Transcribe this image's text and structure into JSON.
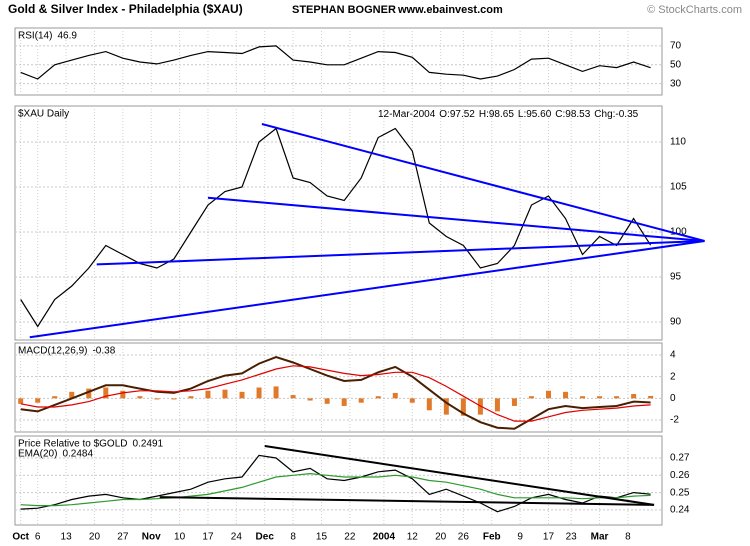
{
  "header": {
    "title": "Gold & Silver Index - Philadelphia ($XAU)",
    "author": "STEPHAN BOGNER",
    "website": "www.ebainvest.com",
    "copyright": "© StockCharts.com"
  },
  "chart_data": [
    {
      "type": "line",
      "x": [
        0,
        3,
        6,
        9,
        12,
        15,
        18,
        21,
        24,
        27,
        30,
        33,
        36,
        39,
        42,
        45,
        48,
        51,
        54,
        57,
        60,
        63,
        66,
        69,
        72,
        75,
        78,
        81,
        84,
        87,
        90,
        93,
        96,
        99,
        102,
        105,
        108,
        111
      ],
      "ylim": [
        18,
        89
      ],
      "yticks": [
        30,
        50,
        70
      ],
      "grid": true,
      "series": [
        {
          "name": "RSI(14)",
          "color": "#000000",
          "values": [
            42,
            35,
            50,
            55,
            60,
            64,
            57,
            53,
            51,
            55,
            60,
            64,
            63,
            62,
            69,
            70,
            55,
            53,
            50,
            50,
            57,
            64,
            63,
            58,
            42,
            40,
            39,
            35,
            38,
            45,
            56,
            57,
            50,
            43,
            49,
            47,
            53,
            46.9
          ]
        }
      ]
    },
    {
      "type": "line",
      "title": "$XAU Daily",
      "x": [
        0,
        3,
        6,
        9,
        12,
        15,
        18,
        21,
        24,
        27,
        30,
        33,
        36,
        39,
        42,
        45,
        48,
        51,
        54,
        57,
        60,
        63,
        66,
        69,
        72,
        75,
        78,
        81,
        84,
        87,
        90,
        93,
        96,
        99,
        102,
        105,
        108,
        111
      ],
      "quote": {
        "date": "12-Mar-2004",
        "open": "O:97.52",
        "high": "H:98.65",
        "low": "L:95.60",
        "close": "C:98.53",
        "change": "Chg:-0.35"
      },
      "ylim": [
        88,
        114
      ],
      "yticks": [
        90,
        95,
        100,
        105,
        110
      ],
      "grid": true,
      "series": [
        {
          "color": "#000000",
          "values": [
            92.5,
            89.5,
            92.5,
            94,
            96,
            98.5,
            97.5,
            96.5,
            96,
            97,
            100,
            103,
            104.5,
            105,
            110,
            111.5,
            106,
            105.5,
            104,
            103.5,
            106,
            110.5,
            111.5,
            109,
            101,
            99.5,
            98.5,
            96,
            96.5,
            98.5,
            103,
            104,
            101.5,
            97.5,
            99.5,
            98.5,
            101.5,
            98.53
          ]
        }
      ],
      "trendlines": [
        {
          "x": [
            42.5,
            120.5
          ],
          "y": [
            112,
            99
          ],
          "color": "#0000ff"
        },
        {
          "x": [
            33,
            120.5
          ],
          "y": [
            103.8,
            99
          ],
          "color": "#0000ff"
        },
        {
          "x": [
            13.4,
            120.5
          ],
          "y": [
            96.4,
            99
          ],
          "color": "#0000ff"
        },
        {
          "x": [
            1.6,
            120.5
          ],
          "y": [
            88.3,
            99
          ],
          "color": "#0000ff"
        }
      ]
    },
    {
      "type": "line",
      "x": [
        0,
        3,
        6,
        9,
        12,
        15,
        18,
        21,
        24,
        27,
        30,
        33,
        36,
        39,
        42,
        45,
        48,
        51,
        54,
        57,
        60,
        63,
        66,
        69,
        72,
        75,
        78,
        81,
        84,
        87,
        90,
        93,
        96,
        99,
        102,
        105,
        108,
        111
      ],
      "ylim": [
        -3.1,
        5.1
      ],
      "yticks": [
        -2,
        0,
        2,
        4
      ],
      "grid": true,
      "series": [
        {
          "kind": "bar",
          "color": "#e07a2a",
          "values": [
            -0.5,
            -0.4,
            0.2,
            0.6,
            0.9,
            1.0,
            0.7,
            0.2,
            -0.1,
            -0.1,
            0.2,
            0.7,
            0.8,
            0.6,
            1.0,
            1.1,
            0.3,
            -0.2,
            -0.5,
            -0.7,
            -0.4,
            0.2,
            0.5,
            -0.4,
            -1.1,
            -1.5,
            -1.6,
            -1.5,
            -1.2,
            -0.7,
            0.2,
            0.7,
            0.6,
            0.2,
            0.2,
            0.2,
            0.4,
            0.22
          ]
        },
        {
          "name": "MACD(12,26,9)",
          "color": "#4a1e00",
          "values": [
            -1,
            -1.2,
            -0.6,
            0,
            0.6,
            1.2,
            1.2,
            0.9,
            0.6,
            0.5,
            0.9,
            1.6,
            2.1,
            2.3,
            3.2,
            3.8,
            3.3,
            2.7,
            2.1,
            1.6,
            1.7,
            2.4,
            2.9,
            2.0,
            0.8,
            -0.4,
            -1.4,
            -2.2,
            -2.7,
            -2.8,
            -1.9,
            -1.0,
            -0.7,
            -0.9,
            -0.8,
            -0.7,
            -0.3,
            -0.38
          ]
        },
        {
          "color": "#e00000",
          "values": [
            -0.5,
            -0.8,
            -0.8,
            -0.6,
            -0.3,
            0.2,
            0.5,
            0.7,
            0.7,
            0.6,
            0.7,
            0.9,
            1.3,
            1.7,
            2.2,
            2.7,
            3.0,
            2.9,
            2.6,
            2.3,
            2.1,
            2.2,
            2.4,
            2.4,
            1.9,
            1.1,
            0.2,
            -0.7,
            -1.5,
            -2.1,
            -2.1,
            -1.7,
            -1.3,
            -1.1,
            -1.0,
            -0.9,
            -0.7,
            -0.6
          ]
        }
      ]
    },
    {
      "type": "line",
      "x": [
        0,
        3,
        6,
        9,
        12,
        15,
        18,
        21,
        24,
        27,
        30,
        33,
        36,
        39,
        42,
        45,
        48,
        51,
        54,
        57,
        60,
        63,
        66,
        69,
        72,
        75,
        78,
        81,
        84,
        87,
        90,
        93,
        96,
        99,
        102,
        105,
        108,
        111
      ],
      "xlim": [
        -1,
        113
      ],
      "xticks": [
        {
          "value": 0,
          "label": "Oct"
        },
        {
          "value": 3,
          "label": "6"
        },
        {
          "value": 8,
          "label": "13"
        },
        {
          "value": 13,
          "label": "20"
        },
        {
          "value": 18,
          "label": "27"
        },
        {
          "value": 23,
          "label": "Nov"
        },
        {
          "value": 28,
          "label": "10"
        },
        {
          "value": 33,
          "label": "17"
        },
        {
          "value": 38,
          "label": "24"
        },
        {
          "value": 43,
          "label": "Dec"
        },
        {
          "value": 48,
          "label": "8"
        },
        {
          "value": 53,
          "label": "15"
        },
        {
          "value": 58,
          "label": "22"
        },
        {
          "value": 64,
          "label": "2004"
        },
        {
          "value": 69,
          "label": "12"
        },
        {
          "value": 74,
          "label": "20"
        },
        {
          "value": 78,
          "label": "26"
        },
        {
          "value": 83,
          "label": "Feb"
        },
        {
          "value": 88,
          "label": "9"
        },
        {
          "value": 93,
          "label": "17"
        },
        {
          "value": 97,
          "label": "23"
        },
        {
          "value": 102,
          "label": "Mar"
        },
        {
          "value": 107,
          "label": "8"
        }
      ],
      "ylim": [
        0.2313,
        0.2827
      ],
      "yticks": [
        0.24,
        0.25,
        0.26,
        0.27
      ],
      "grid": true,
      "series": [
        {
          "name": "Price Relative to $GOLD",
          "color": "#000000",
          "values": [
            0.2405,
            0.241,
            0.243,
            0.246,
            0.248,
            0.249,
            0.247,
            0.246,
            0.248,
            0.25,
            0.252,
            0.256,
            0.258,
            0.259,
            0.2715,
            0.27,
            0.262,
            0.264,
            0.258,
            0.257,
            0.259,
            0.262,
            0.263,
            0.258,
            0.249,
            0.252,
            0.248,
            0.244,
            0.239,
            0.242,
            0.247,
            0.249,
            0.246,
            0.244,
            0.248,
            0.247,
            0.25,
            0.2491
          ]
        },
        {
          "name": "EMA(20)",
          "color": "#2e9a2e",
          "values": [
            0.243,
            0.2425,
            0.2425,
            0.243,
            0.244,
            0.245,
            0.246,
            0.246,
            0.2465,
            0.247,
            0.248,
            0.249,
            0.251,
            0.253,
            0.256,
            0.259,
            0.26,
            0.261,
            0.26,
            0.259,
            0.259,
            0.259,
            0.26,
            0.259,
            0.257,
            0.256,
            0.254,
            0.252,
            0.249,
            0.247,
            0.247,
            0.247,
            0.247,
            0.2465,
            0.247,
            0.247,
            0.248,
            0.2484
          ]
        }
      ],
      "trendlines": [
        {
          "x": [
            43,
            111.6
          ],
          "y": [
            0.2769,
            0.2429
          ],
          "color": "#000000"
        },
        {
          "x": [
            24.5,
            111.6
          ],
          "y": [
            0.2474,
            0.2429
          ],
          "color": "#000000"
        }
      ]
    }
  ]
}
